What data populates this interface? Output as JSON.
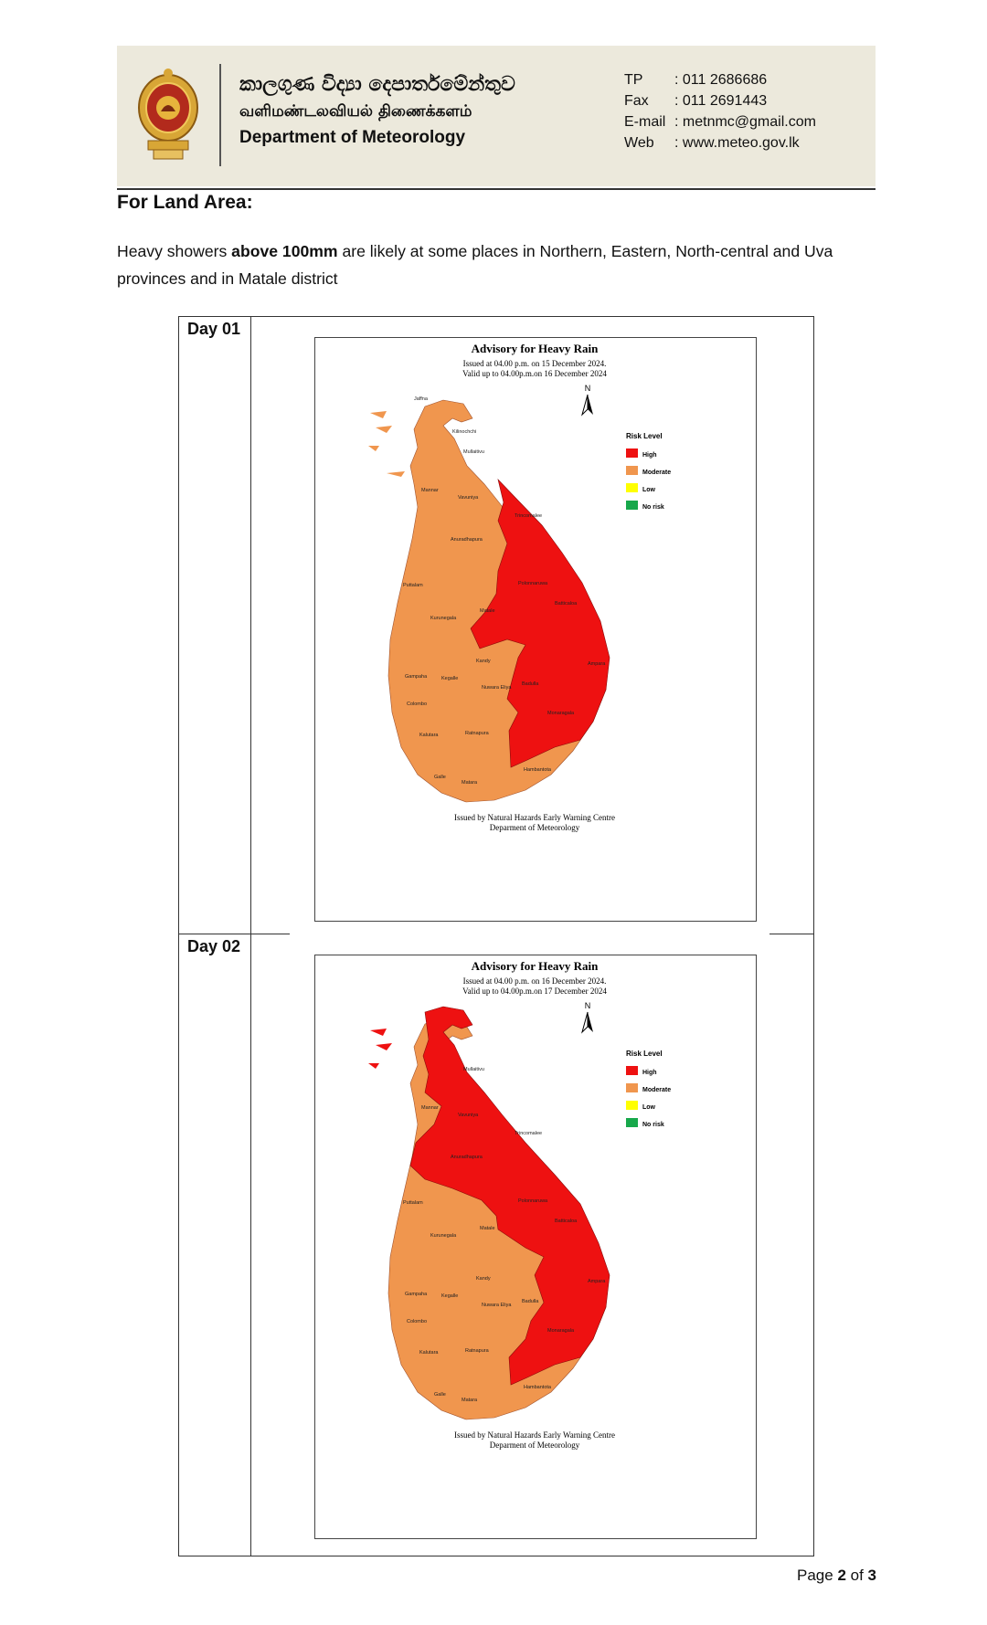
{
  "header": {
    "title_sinhala": "කාලගුණ විද්‍යා දෙපාර්තමේන්තුව",
    "title_tamil": "வளிமண்டலவியல் திணைக்களம்",
    "title_english": "Department of Meteorology",
    "contacts": [
      {
        "label": "TP",
        "value": ": 011 2686686"
      },
      {
        "label": "Fax",
        "value": ": 011 2691443"
      },
      {
        "label": "E-mail",
        "value": ": metnmc@gmail.com"
      },
      {
        "label": "Web",
        "value": ": www.meteo.gov.lk"
      }
    ]
  },
  "section_title": "For Land Area:",
  "paragraph": {
    "part1": "Heavy showers ",
    "bold": "above 100mm",
    "part2": " are likely at some places in Northern, Eastern, North-central and Uva provinces and in Matale district"
  },
  "days": [
    {
      "label": "Day 01",
      "map": {
        "title": "Advisory for Heavy Rain",
        "issued": "Issued at 04.00 p.m. on 15 December 2024.",
        "valid": "Valid up to 04.00p.m.on 16 December 2024",
        "footer1": "Issued by Natural Hazards Early Warning Centre",
        "footer2": "Deparment of Meteorology"
      },
      "high_risk_districts": [
        "Trincomalee",
        "Polonnaruwa",
        "Batticaloa",
        "Matale",
        "Ampara",
        "Badulla",
        "Monaragala"
      ]
    },
    {
      "label": "Day 02",
      "map": {
        "title": "Advisory for Heavy Rain",
        "issued": "Issued at 04.00 p.m. on 16 December 2024.",
        "valid": "Valid up to 04.00p.m.on 17 December 2024",
        "footer1": "Issued by Natural Hazards Early Warning Centre",
        "footer2": "Deparment of Meteorology"
      },
      "high_risk_districts": [
        "Jaffna",
        "Kilinochchi",
        "Mullaitivu",
        "Vavuniya",
        "Anuradhapura",
        "Trincomalee",
        "Polonnaruwa",
        "Batticaloa",
        "Ampara",
        "Monaragala"
      ]
    }
  ],
  "legend": {
    "title": "Risk Level",
    "items": [
      {
        "label": "High",
        "color": "#ee1111"
      },
      {
        "label": "Moderate",
        "color": "#f0964e"
      },
      {
        "label": "Low",
        "color": "#ffff00"
      },
      {
        "label": "No risk",
        "color": "#17a84b"
      }
    ]
  },
  "north_arrow": "N",
  "district_labels_day1": [
    "Jaffna",
    "Kilinochchi",
    "Mullaitivu",
    "Mannar",
    "Vavuniya",
    "Trincomalee",
    "Anuradhapura",
    "Puttalam",
    "Polonnaruwa",
    "Batticaloa",
    "Kurunegala",
    "Matale",
    "Kandy",
    "Ampara",
    "Gampaha",
    "Kegalle",
    "Nuwara Eliya",
    "Badulla",
    "Colombo",
    "Monaragala",
    "Kalutara",
    "Ratnapura",
    "Hambantota",
    "Galle",
    "Matara"
  ],
  "district_labels_day2": [
    "Mullaitivu",
    "Mannar",
    "Vavuniya",
    "Anuradhapura",
    "Trincomalee",
    "Polonnaruwa",
    "Puttalam",
    "Batticaloa",
    "Kurunegala",
    "Matale",
    "Kandy",
    "Ampara",
    "Gampaha",
    "Kegalle",
    "Nuwara Eliya",
    "Badulla",
    "Colombo",
    "Monaragala",
    "Kalutara",
    "Ratnapura",
    "Hambantota",
    "Galle",
    "Matara"
  ],
  "page_footer": {
    "prefix": "Page ",
    "current": "2",
    "middle": " of ",
    "total": "3"
  },
  "colors": {
    "header_bg": "#ece9dc",
    "high": "#ee1111",
    "moderate": "#f0964e"
  }
}
